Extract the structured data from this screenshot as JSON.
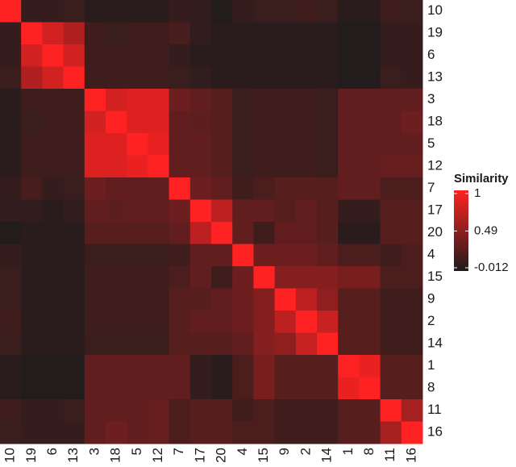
{
  "chart_data": {
    "type": "heatmap",
    "labels": [
      "10",
      "19",
      "6",
      "13",
      "3",
      "18",
      "5",
      "12",
      "7",
      "17",
      "20",
      "4",
      "15",
      "9",
      "2",
      "14",
      "1",
      "8",
      "11",
      "16"
    ],
    "matrix": [
      [
        1,
        0.1,
        0.1,
        0.12,
        0.05,
        0.05,
        0.05,
        0.05,
        0.1,
        0.08,
        0.02,
        0.1,
        0.12,
        0.12,
        0.15,
        0.12,
        0.05,
        0.05,
        0.15,
        0.12
      ],
      [
        0.1,
        1,
        0.8,
        0.65,
        0.15,
        0.12,
        0.15,
        0.15,
        0.18,
        0.08,
        0.05,
        0.05,
        0.05,
        0.05,
        0.05,
        0.05,
        0.02,
        0.02,
        0.1,
        0.1
      ],
      [
        0.1,
        0.8,
        1,
        0.8,
        0.15,
        0.15,
        0.15,
        0.15,
        0.1,
        0.05,
        0.05,
        0.05,
        0.05,
        0.05,
        0.05,
        0.05,
        0.02,
        0.02,
        0.1,
        0.1
      ],
      [
        0.12,
        0.65,
        0.8,
        1,
        0.15,
        0.15,
        0.15,
        0.15,
        0.12,
        0.08,
        0.05,
        0.05,
        0.05,
        0.05,
        0.05,
        0.05,
        0.02,
        0.02,
        0.12,
        0.1
      ],
      [
        0.05,
        0.15,
        0.15,
        0.15,
        1,
        0.8,
        0.85,
        0.85,
        0.35,
        0.3,
        0.25,
        0.12,
        0.15,
        0.15,
        0.15,
        0.12,
        0.3,
        0.3,
        0.3,
        0.3
      ],
      [
        0.05,
        0.12,
        0.15,
        0.15,
        0.8,
        1,
        0.85,
        0.85,
        0.3,
        0.28,
        0.25,
        0.12,
        0.15,
        0.15,
        0.15,
        0.12,
        0.3,
        0.3,
        0.3,
        0.35
      ],
      [
        0.05,
        0.15,
        0.15,
        0.15,
        0.85,
        0.85,
        1,
        0.9,
        0.3,
        0.3,
        0.25,
        0.12,
        0.15,
        0.15,
        0.15,
        0.12,
        0.3,
        0.3,
        0.3,
        0.3
      ],
      [
        0.05,
        0.15,
        0.15,
        0.15,
        0.85,
        0.85,
        0.9,
        1,
        0.3,
        0.3,
        0.25,
        0.12,
        0.15,
        0.15,
        0.15,
        0.12,
        0.3,
        0.3,
        0.32,
        0.32
      ],
      [
        0.1,
        0.18,
        0.1,
        0.12,
        0.35,
        0.3,
        0.3,
        0.3,
        1,
        0.35,
        0.3,
        0.15,
        0.2,
        0.25,
        0.25,
        0.25,
        0.3,
        0.3,
        0.2,
        0.2
      ],
      [
        0.08,
        0.08,
        0.05,
        0.08,
        0.3,
        0.28,
        0.3,
        0.3,
        0.35,
        1,
        0.7,
        0.3,
        0.3,
        0.25,
        0.3,
        0.25,
        0.1,
        0.1,
        0.25,
        0.25
      ],
      [
        0.02,
        0.05,
        0.05,
        0.05,
        0.25,
        0.25,
        0.25,
        0.25,
        0.3,
        0.7,
        1,
        0.3,
        0.15,
        0.3,
        0.3,
        0.25,
        0.05,
        0.05,
        0.25,
        0.25
      ],
      [
        0.1,
        0.05,
        0.05,
        0.05,
        0.12,
        0.12,
        0.12,
        0.12,
        0.15,
        0.3,
        0.3,
        1,
        0.35,
        0.35,
        0.35,
        0.3,
        0.2,
        0.2,
        0.15,
        0.2
      ],
      [
        0.12,
        0.05,
        0.05,
        0.05,
        0.15,
        0.15,
        0.15,
        0.15,
        0.2,
        0.3,
        0.15,
        0.35,
        1,
        0.45,
        0.45,
        0.45,
        0.4,
        0.4,
        0.2,
        0.2
      ],
      [
        0.12,
        0.05,
        0.05,
        0.05,
        0.15,
        0.15,
        0.15,
        0.15,
        0.25,
        0.25,
        0.3,
        0.35,
        0.45,
        1,
        0.7,
        0.5,
        0.25,
        0.25,
        0.15,
        0.15
      ],
      [
        0.15,
        0.05,
        0.05,
        0.05,
        0.15,
        0.15,
        0.15,
        0.15,
        0.25,
        0.3,
        0.3,
        0.35,
        0.45,
        0.7,
        1,
        0.75,
        0.25,
        0.25,
        0.15,
        0.15
      ],
      [
        0.12,
        0.05,
        0.05,
        0.05,
        0.12,
        0.12,
        0.12,
        0.12,
        0.25,
        0.25,
        0.25,
        0.3,
        0.45,
        0.5,
        0.75,
        1,
        0.25,
        0.25,
        0.15,
        0.15
      ],
      [
        0.05,
        0.02,
        0.02,
        0.02,
        0.3,
        0.3,
        0.3,
        0.3,
        0.3,
        0.1,
        0.05,
        0.2,
        0.4,
        0.25,
        0.25,
        0.25,
        1,
        0.9,
        0.25,
        0.25
      ],
      [
        0.05,
        0.02,
        0.02,
        0.02,
        0.3,
        0.3,
        0.3,
        0.3,
        0.3,
        0.1,
        0.05,
        0.2,
        0.4,
        0.25,
        0.25,
        0.25,
        0.9,
        1,
        0.25,
        0.25
      ],
      [
        0.15,
        0.1,
        0.1,
        0.12,
        0.3,
        0.3,
        0.3,
        0.32,
        0.2,
        0.25,
        0.25,
        0.15,
        0.2,
        0.15,
        0.15,
        0.15,
        0.25,
        0.25,
        1,
        0.6
      ],
      [
        0.12,
        0.1,
        0.1,
        0.1,
        0.3,
        0.35,
        0.3,
        0.32,
        0.2,
        0.25,
        0.25,
        0.2,
        0.2,
        0.15,
        0.15,
        0.15,
        0.25,
        0.25,
        0.6,
        1
      ]
    ],
    "legend_title": "Similarity",
    "clim": [
      -0.012,
      1
    ],
    "colorbar_ticks": [
      1,
      0.49,
      -0.012
    ],
    "low_color": "#1c1c1c",
    "high_color": "#ff2222"
  }
}
